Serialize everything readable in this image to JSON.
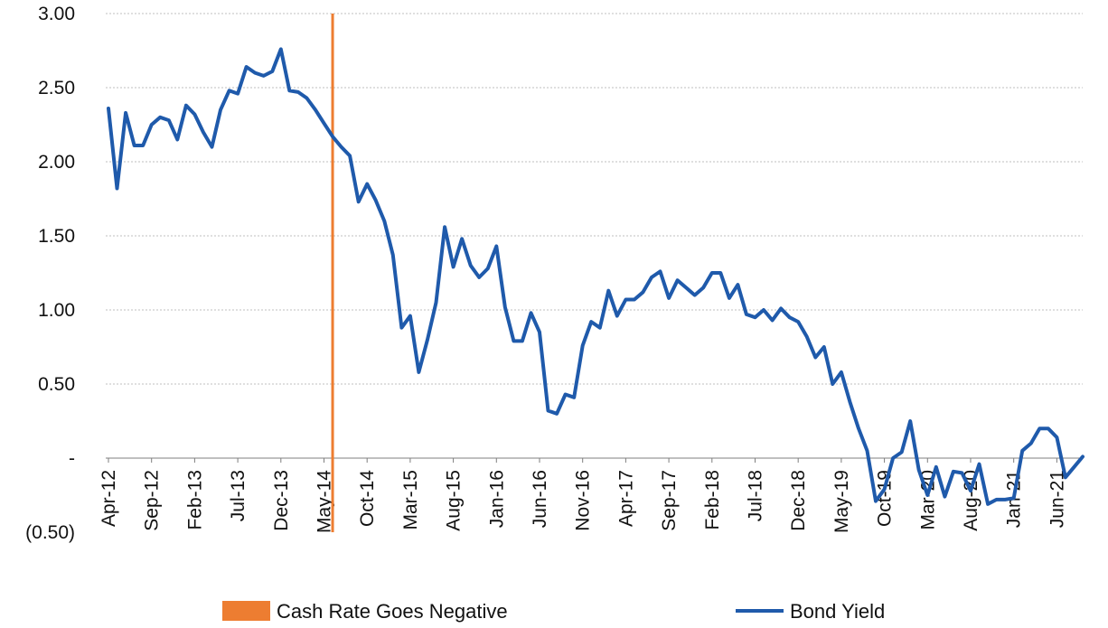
{
  "chart_data": {
    "type": "line",
    "title": "",
    "xlabel": "",
    "ylabel": "",
    "ylim": [
      -0.5,
      3.0
    ],
    "grid": "horizontal",
    "legend_placement": "bottom",
    "colors": {
      "bond_yield": "#1f5aab",
      "cash_rate_marker": "#ed7d31",
      "grid": "#bfbfbf",
      "axis": "#7f7f7f"
    },
    "y_ticks": [
      {
        "value": 3.0,
        "label": "3.00"
      },
      {
        "value": 2.5,
        "label": "2.50"
      },
      {
        "value": 2.0,
        "label": "2.00"
      },
      {
        "value": 1.5,
        "label": "1.50"
      },
      {
        "value": 1.0,
        "label": "1.00"
      },
      {
        "value": 0.5,
        "label": "0.50"
      },
      {
        "value": 0.0,
        "label": "-"
      },
      {
        "value": -0.5,
        "label": "(0.50)"
      }
    ],
    "x_tick_labels": [
      "Apr-12",
      "Sep-12",
      "Feb-13",
      "Jul-13",
      "Dec-13",
      "May-14",
      "Oct-14",
      "Mar-15",
      "Aug-15",
      "Jan-16",
      "Jun-16",
      "Nov-16",
      "Apr-17",
      "Sep-17",
      "Feb-18",
      "Jul-18",
      "Dec-18",
      "May-19",
      "Oct-19",
      "Mar-20",
      "Aug-20",
      "Jan-21",
      "Jun-21"
    ],
    "x": [
      "2012-04",
      "2012-05",
      "2012-06",
      "2012-07",
      "2012-08",
      "2012-09",
      "2012-10",
      "2012-11",
      "2012-12",
      "2013-01",
      "2013-02",
      "2013-03",
      "2013-04",
      "2013-05",
      "2013-06",
      "2013-07",
      "2013-08",
      "2013-09",
      "2013-10",
      "2013-11",
      "2013-12",
      "2014-01",
      "2014-02",
      "2014-03",
      "2014-04",
      "2014-05",
      "2014-06",
      "2014-07",
      "2014-08",
      "2014-09",
      "2014-10",
      "2014-11",
      "2014-12",
      "2015-01",
      "2015-02",
      "2015-03",
      "2015-04",
      "2015-05",
      "2015-06",
      "2015-07",
      "2015-08",
      "2015-09",
      "2015-10",
      "2015-11",
      "2015-12",
      "2016-01",
      "2016-02",
      "2016-03",
      "2016-04",
      "2016-05",
      "2016-06",
      "2016-07",
      "2016-08",
      "2016-09",
      "2016-10",
      "2016-11",
      "2016-12",
      "2017-01",
      "2017-02",
      "2017-03",
      "2017-04",
      "2017-05",
      "2017-06",
      "2017-07",
      "2017-08",
      "2017-09",
      "2017-10",
      "2017-11",
      "2017-12",
      "2018-01",
      "2018-02",
      "2018-03",
      "2018-04",
      "2018-05",
      "2018-06",
      "2018-07",
      "2018-08",
      "2018-09",
      "2018-10",
      "2018-11",
      "2018-12",
      "2019-01",
      "2019-02",
      "2019-03",
      "2019-04",
      "2019-05",
      "2019-06",
      "2019-07",
      "2019-08",
      "2019-09",
      "2019-10",
      "2019-11",
      "2019-12",
      "2020-01",
      "2020-02",
      "2020-03",
      "2020-04",
      "2020-05",
      "2020-06",
      "2020-07",
      "2020-08",
      "2020-09",
      "2020-10",
      "2020-11",
      "2020-12",
      "2021-01",
      "2021-02",
      "2021-03",
      "2021-04",
      "2021-05",
      "2021-06",
      "2021-07",
      "2021-08",
      "2021-09"
    ],
    "series": [
      {
        "name": "Bond Yield",
        "values": [
          2.36,
          1.82,
          2.33,
          2.11,
          2.11,
          2.25,
          2.3,
          2.28,
          2.15,
          2.38,
          2.32,
          2.2,
          2.1,
          2.35,
          2.48,
          2.46,
          2.64,
          2.6,
          2.58,
          2.61,
          2.76,
          2.48,
          2.47,
          2.43,
          2.35,
          2.26,
          2.17,
          2.1,
          2.04,
          1.73,
          1.85,
          1.74,
          1.6,
          1.37,
          0.88,
          0.96,
          0.58,
          0.8,
          1.05,
          1.56,
          1.29,
          1.48,
          1.3,
          1.22,
          1.28,
          1.43,
          1.02,
          0.79,
          0.79,
          0.98,
          0.85,
          0.32,
          0.3,
          0.43,
          0.41,
          0.76,
          0.92,
          0.88,
          1.13,
          0.96,
          1.07,
          1.07,
          1.12,
          1.22,
          1.26,
          1.08,
          1.2,
          1.15,
          1.1,
          1.15,
          1.25,
          1.25,
          1.08,
          1.17,
          0.97,
          0.95,
          1.0,
          0.93,
          1.01,
          0.95,
          0.92,
          0.82,
          0.68,
          0.75,
          0.5,
          0.58,
          0.38,
          0.2,
          0.05,
          -0.29,
          -0.21,
          0.0,
          0.04,
          0.25,
          -0.08,
          -0.25,
          -0.06,
          -0.26,
          -0.09,
          -0.1,
          -0.22,
          -0.04,
          -0.31,
          -0.28,
          -0.28,
          -0.27,
          0.05,
          0.1,
          0.2,
          0.2,
          0.14,
          -0.13,
          -0.06,
          0.01
        ]
      }
    ],
    "markers": [
      {
        "name": "Cash Rate Goes Negative",
        "x": "2014-06"
      }
    ],
    "legend": [
      {
        "label": "Cash Rate Goes Negative",
        "kind": "bar",
        "color": "#ed7d31"
      },
      {
        "label": "Bond Yield",
        "kind": "line",
        "color": "#1f5aab"
      }
    ]
  }
}
